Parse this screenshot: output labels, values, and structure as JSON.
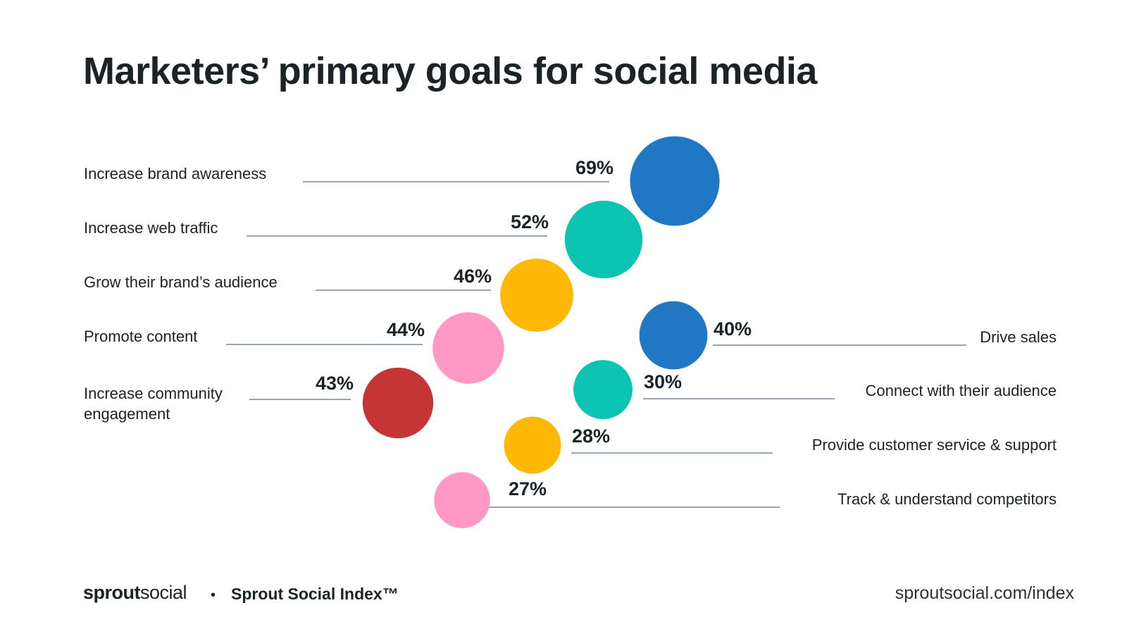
{
  "title": "Marketers’ primary goals for social media",
  "chart_data": {
    "type": "bubble",
    "title": "Marketers’ primary goals for social media",
    "unit": "%",
    "left_series": [
      {
        "label": "Increase brand awareness",
        "value": 69,
        "color": "#2077c4"
      },
      {
        "label": "Increase web traffic",
        "value": 52,
        "color": "#0bc4b2"
      },
      {
        "label": "Grow their brand’s audience",
        "value": 46,
        "color": "#ffb805"
      },
      {
        "label": "Promote content",
        "value": 44,
        "color": "#ff98c3"
      },
      {
        "label": "Increase community engagement",
        "value": 43,
        "color": "#c63535"
      }
    ],
    "right_series": [
      {
        "label": "Drive sales",
        "value": 40,
        "color": "#2077c4"
      },
      {
        "label": "Connect with their audience",
        "value": 30,
        "color": "#0bc4b2"
      },
      {
        "label": "Provide customer service & support",
        "value": 28,
        "color": "#ffb805"
      },
      {
        "label": "Track & understand competitors",
        "value": 27,
        "color": "#ff98c3"
      }
    ]
  },
  "footer": {
    "brand_bold": "sprout",
    "brand_light": "social",
    "separator": "•",
    "index_name": "Sprout Social Index™",
    "url": "sproutsocial.com/index"
  }
}
